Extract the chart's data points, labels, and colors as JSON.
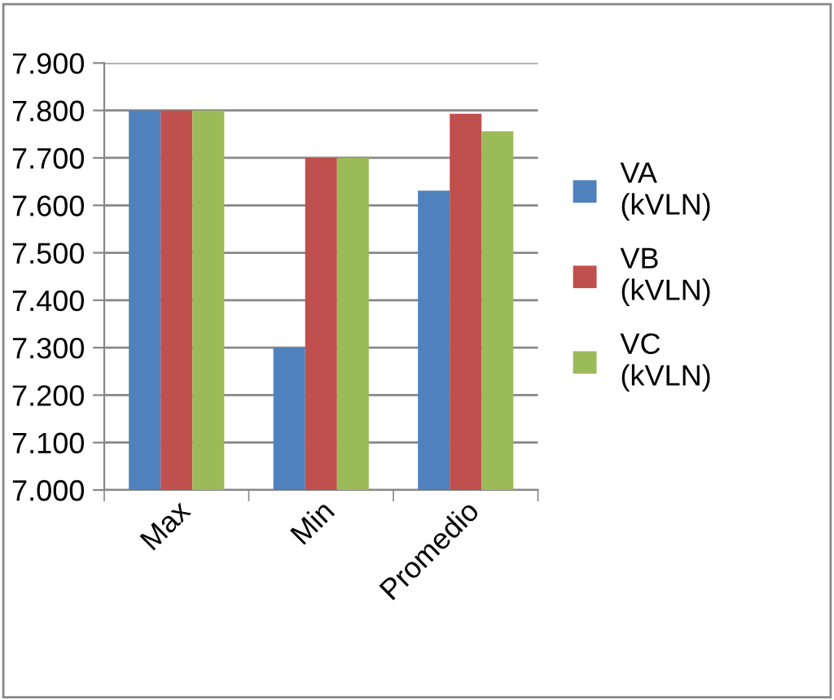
{
  "chart_data": {
    "type": "bar",
    "categories": [
      "Max",
      "Min",
      "Promedio"
    ],
    "series": [
      {
        "name": "VA (kVLN)",
        "color": "#4f81bd",
        "values": [
          7.8,
          7.3,
          7.631
        ]
      },
      {
        "name": "VB (kVLN)",
        "color": "#c0504d",
        "values": [
          7.8,
          7.7,
          7.793
        ]
      },
      {
        "name": "VC (kVLN)",
        "color": "#9bbb59",
        "values": [
          7.8,
          7.7,
          7.756
        ]
      }
    ],
    "ylim": [
      7.0,
      7.9
    ],
    "yticks": [
      {
        "value": 7.0,
        "label": "7.000"
      },
      {
        "value": 7.1,
        "label": "7.100"
      },
      {
        "value": 7.2,
        "label": "7.200"
      },
      {
        "value": 7.3,
        "label": "7.300"
      },
      {
        "value": 7.4,
        "label": "7.400"
      },
      {
        "value": 7.5,
        "label": "7.500"
      },
      {
        "value": 7.6,
        "label": "7.600"
      },
      {
        "value": 7.7,
        "label": "7.700"
      },
      {
        "value": 7.8,
        "label": "7.800"
      },
      {
        "value": 7.9,
        "label": "7.900"
      }
    ],
    "grid": "y",
    "legend": "right"
  }
}
